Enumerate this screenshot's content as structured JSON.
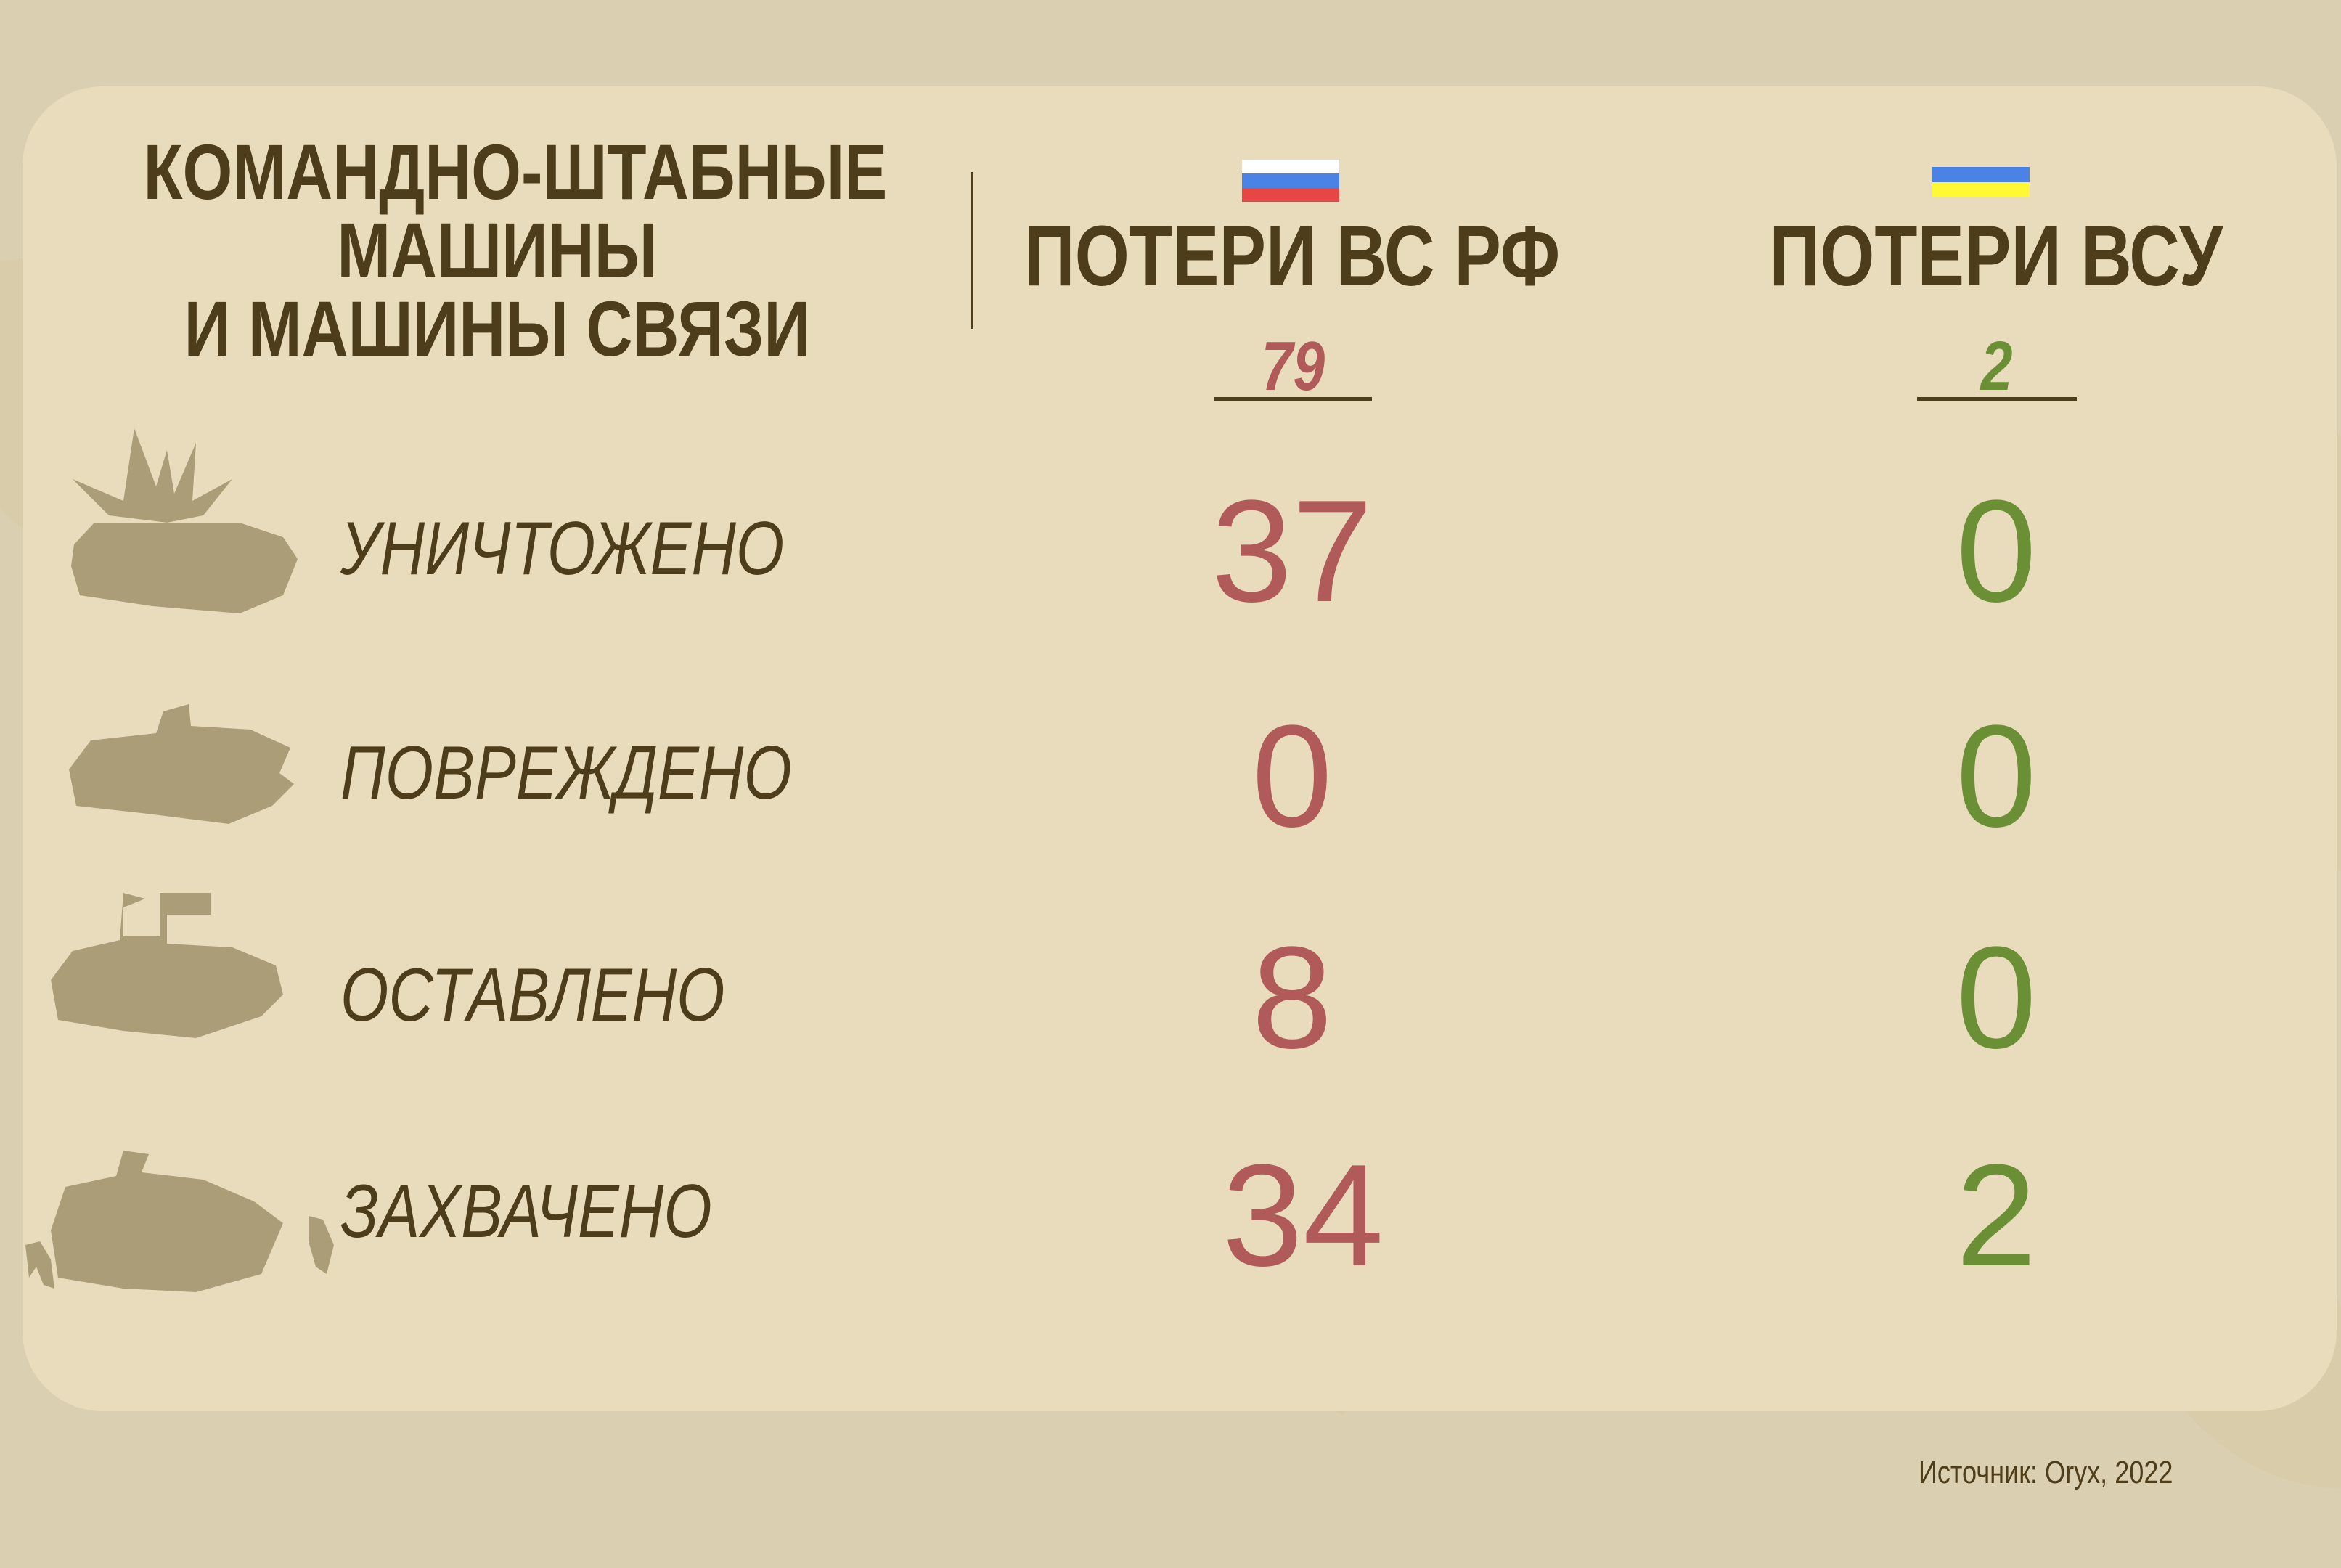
{
  "title": {
    "lines": [
      "КОМАНДНО-ШТАБНЫЕ",
      "МАШИНЫ",
      "И МАШИНЫ СВЯЗИ"
    ]
  },
  "columns": [
    {
      "label": "ПОТЕРИ ВС РФ",
      "flag": [
        "#ffffff",
        "#4a82e6",
        "#e64646"
      ],
      "total": "79",
      "color": "#b05a5a"
    },
    {
      "label": "ПОТЕРИ ВСУ",
      "flag": [
        "#4a82e6",
        "#fff835"
      ],
      "total": "2",
      "color": "#6b8f34"
    }
  ],
  "rows": [
    {
      "label": "УНИЧТОЖЕНО",
      "icon": "destroyed-vehicle-icon",
      "ru": "37",
      "ua": "0"
    },
    {
      "label": "ПОВРЕЖДЕНО",
      "icon": "damaged-vehicle-icon",
      "ru": "0",
      "ua": "0"
    },
    {
      "label": "ОСТАВЛЕНО",
      "icon": "abandoned-vehicle-icon",
      "ru": "8",
      "ua": "0"
    },
    {
      "label": "ЗАХВАЧЕНО",
      "icon": "captured-vehicle-icon",
      "ru": "34",
      "ua": "2"
    }
  ],
  "source": "Источник: Oryx, 2022",
  "colors": {
    "background": "#dacfb0",
    "panel": "#e8dcbc",
    "text": "#4e3d1b",
    "icon": "#ab9d78"
  }
}
